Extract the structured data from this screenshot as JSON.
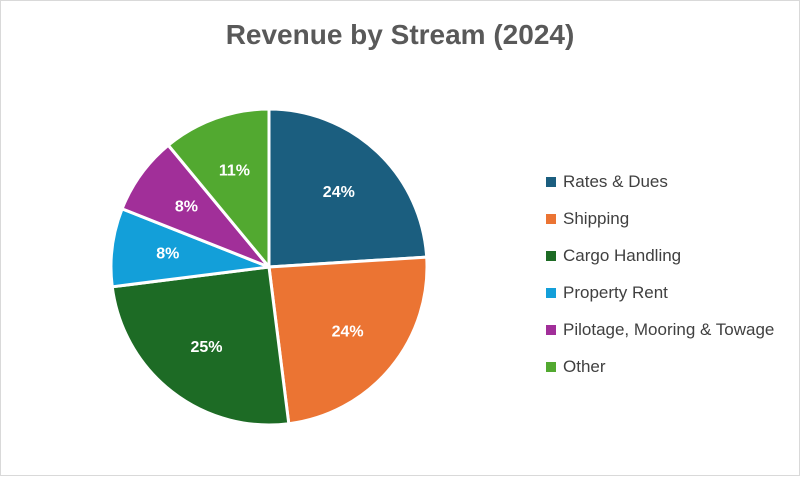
{
  "chart_data": {
    "type": "pie",
    "title": "Revenue by Stream (2024)",
    "categories": [
      "Rates & Dues",
      "Shipping",
      "Cargo Handling",
      "Property Rent",
      "Pilotage, Mooring & Towage",
      "Other"
    ],
    "values": [
      24,
      24,
      25,
      8,
      8,
      11
    ],
    "data_labels": [
      "24%",
      "24%",
      "25%",
      "8%",
      "8%",
      "11%"
    ],
    "colors": [
      "#1b5e7f",
      "#eb7433",
      "#1d6b25",
      "#139fd9",
      "#a12f99",
      "#52a930"
    ],
    "legend_position": "right",
    "start_angle": "12 o'clock, clockwise"
  }
}
